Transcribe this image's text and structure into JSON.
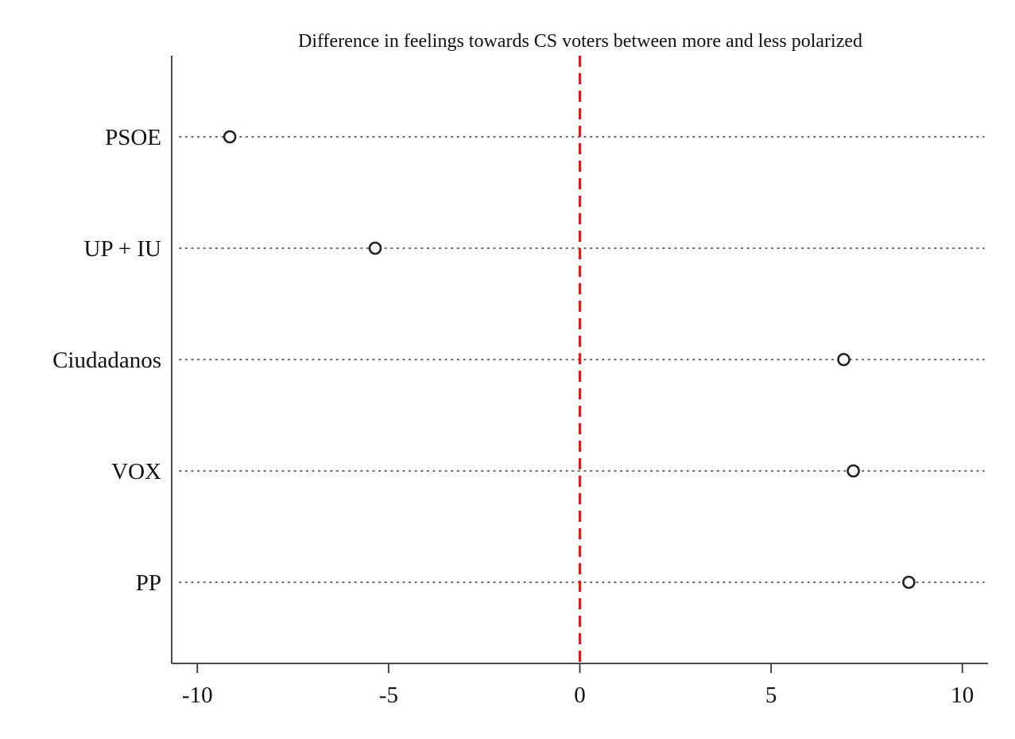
{
  "chart_data": {
    "type": "scatter",
    "title": "Difference in feelings towards CS voters between more and less polarized",
    "xlabel": "",
    "ylabel": "",
    "categories": [
      "PSOE",
      "UP + IU",
      "Ciudadanos",
      "VOX",
      "PP"
    ],
    "values": [
      -9.15,
      -5.35,
      6.9,
      7.15,
      8.6
    ],
    "xlim": [
      -10.67,
      10.67
    ],
    "xticks": [
      -10,
      -5,
      0,
      5,
      10
    ],
    "xtick_labels": [
      "-10",
      "-5",
      "0",
      "5",
      "10"
    ],
    "reference_line": {
      "x": 0,
      "style": "dashed",
      "color": "#e31a1c"
    },
    "marker": "hollow-circle",
    "grid": "dotted horizontal guide lines per category",
    "colors": {
      "marker": "#222222",
      "reference": "#e31a1c",
      "axis": "#333333"
    }
  }
}
